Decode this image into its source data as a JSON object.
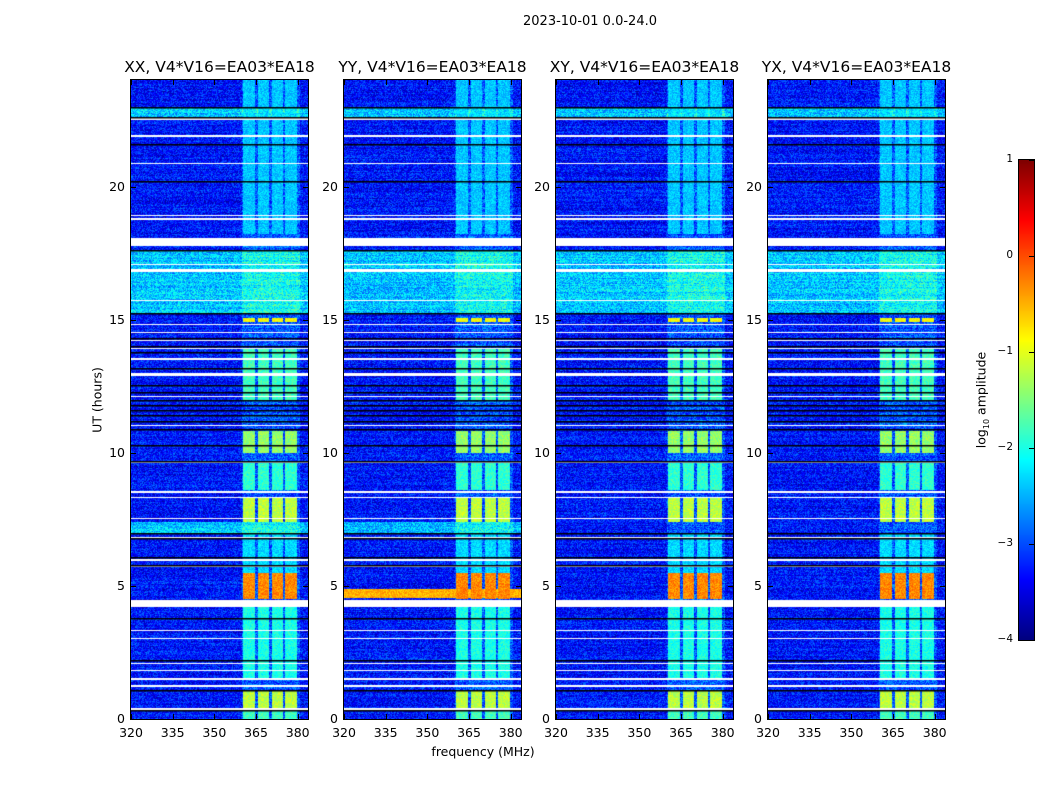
{
  "chart_data": {
    "type": "heatmap",
    "title": "2023-10-01 0.0-24.0",
    "xlabel": "frequency (MHz)",
    "ylabel": "UT (hours)",
    "xlim": [
      320,
      383.7
    ],
    "ylim": [
      0,
      24
    ],
    "xticks": [
      320,
      335,
      350,
      365,
      380
    ],
    "yticks": [
      0,
      5,
      10,
      15,
      20
    ],
    "colorbar": {
      "label_main": "log",
      "label_sub": "10",
      "label_rest": " amplitude",
      "range": [
        -4,
        1
      ],
      "ticks": [
        1,
        0,
        -1,
        -2,
        -3,
        -4
      ],
      "colormap": "jet"
    },
    "panels": [
      {
        "title": "XX, V4*V16=EA03*EA18",
        "seed": 11,
        "broadband_event": false,
        "band_7h": true
      },
      {
        "title": "YY, V4*V16=EA03*EA18",
        "seed": 23,
        "broadband_event": true,
        "band_7h": true
      },
      {
        "title": "XY, V4*V16=EA03*EA18",
        "seed": 37,
        "broadband_event": false,
        "band_7h": false
      },
      {
        "title": "YX, V4*V16=EA03*EA18",
        "seed": 51,
        "broadband_event": false,
        "band_7h": false
      }
    ],
    "background_level": -3.3,
    "subbands_mhz": [
      [
        360.4,
        364.7
      ],
      [
        365.8,
        369.6
      ],
      [
        370.8,
        374.6
      ],
      [
        375.6,
        379.6
      ]
    ],
    "subband_levels_by_time": [
      {
        "hours": [
          0,
          0.35
        ],
        "level": -1.8
      },
      {
        "hours": [
          0.35,
          1.1
        ],
        "level": -1.2
      },
      {
        "hours": [
          1.5,
          4.2
        ],
        "level": -2.0
      },
      {
        "hours": [
          4.5,
          5.5
        ],
        "level": -0.3
      },
      {
        "hours": [
          5.5,
          7.0
        ],
        "level": -2.3
      },
      {
        "hours": [
          7.4,
          8.3
        ],
        "level": -1.2
      },
      {
        "hours": [
          8.6,
          9.6
        ],
        "level": -1.9
      },
      {
        "hours": [
          10.0,
          10.8
        ],
        "level": -1.4
      },
      {
        "hours": [
          12.0,
          13.9
        ],
        "level": -1.8
      },
      {
        "hours": [
          14.9,
          15.05
        ],
        "level": -0.9
      },
      {
        "hours": [
          18.2,
          24
        ],
        "level": -2.4
      }
    ],
    "elevated_background_hours": [
      [
        15.2,
        17.6
      ],
      [
        22.6,
        23.0
      ],
      [
        7.0,
        7.4
      ]
    ],
    "flagged_hours_white": [
      [
        0.33,
        0.4
      ],
      [
        1.2,
        1.28
      ],
      [
        1.45,
        1.55
      ],
      [
        1.8,
        1.85
      ],
      [
        2.05,
        2.1
      ],
      [
        3.0,
        3.06
      ],
      [
        3.3,
        3.36
      ],
      [
        4.2,
        4.48
      ],
      [
        5.7,
        5.75
      ],
      [
        5.95,
        6.0
      ],
      [
        6.8,
        6.85
      ],
      [
        7.5,
        7.55
      ],
      [
        8.3,
        8.35
      ],
      [
        8.5,
        8.55
      ],
      [
        9.6,
        9.66
      ],
      [
        11.0,
        11.05
      ],
      [
        12.1,
        12.15
      ],
      [
        12.9,
        13.0
      ],
      [
        13.5,
        13.55
      ],
      [
        13.9,
        13.95
      ],
      [
        14.2,
        14.25
      ],
      [
        14.5,
        14.55
      ],
      [
        14.8,
        14.85
      ],
      [
        15.7,
        15.75
      ],
      [
        16.8,
        16.9
      ],
      [
        17.05,
        17.1
      ],
      [
        17.75,
        18.05
      ],
      [
        18.75,
        18.8
      ],
      [
        18.88,
        18.92
      ],
      [
        20.85,
        20.9
      ],
      [
        21.85,
        21.95
      ],
      [
        22.5,
        22.58
      ]
    ],
    "black_boundaries_hours": [
      0.35,
      1.1,
      2.2,
      3.8,
      5.8,
      6.1,
      6.8,
      7.0,
      9.7,
      10.3,
      10.9,
      11.2,
      11.4,
      11.6,
      11.8,
      12.0,
      12.3,
      12.55,
      13.2,
      13.8,
      14.0,
      14.3,
      15.25,
      17.6,
      20.2,
      21.6,
      22.6,
      23.0
    ]
  }
}
